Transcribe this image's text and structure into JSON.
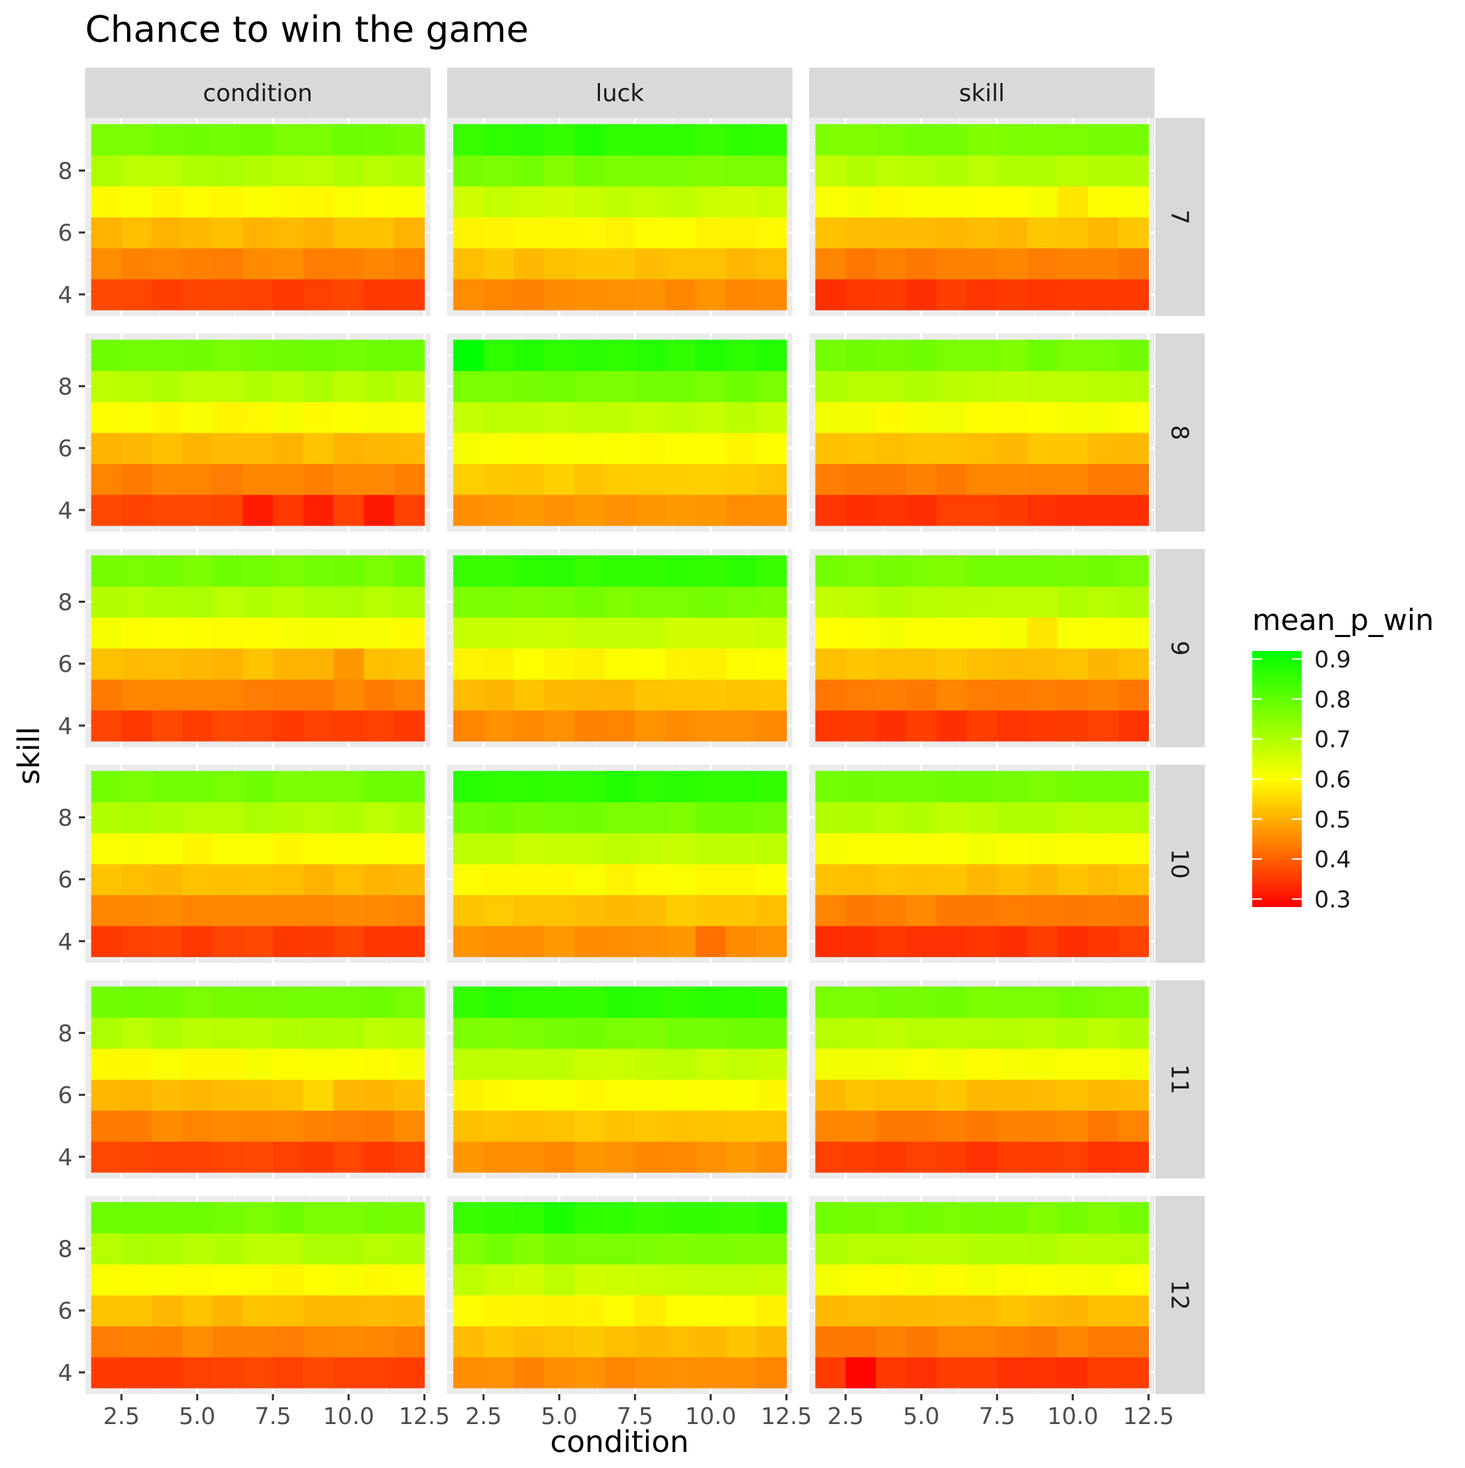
{
  "chart_data": {
    "type": "heatmap",
    "title": "Chance to win the game",
    "xlabel": "condition",
    "ylabel": "skill",
    "column_facets": [
      "condition",
      "luck",
      "skill"
    ],
    "row_facets": [
      "7",
      "8",
      "9",
      "10",
      "11",
      "12"
    ],
    "x": [
      2,
      3,
      4,
      5,
      6,
      7,
      8,
      9,
      10,
      11,
      12
    ],
    "y": [
      4,
      5,
      6,
      7,
      8,
      9
    ],
    "xlim": [
      1.3,
      12.7
    ],
    "ylim": [
      3.3,
      9.7
    ],
    "x_ticks": [
      "2.5",
      "5.0",
      "7.5",
      "10.0",
      "12.5"
    ],
    "y_ticks": [
      "4",
      "6",
      "8"
    ],
    "legend": {
      "title": "mean_p_win",
      "position": "right",
      "min": 0.28,
      "max": 0.92,
      "ticks": [
        "0.9",
        "0.8",
        "0.7",
        "0.6",
        "0.5",
        "0.4",
        "0.3"
      ],
      "low_color": "#ff0000",
      "mid_color": "#ffff00",
      "high_color": "#00ff00",
      "midpoint": 0.6
    },
    "profiles": {
      "condition": [
        0.36,
        0.445,
        0.515,
        0.6,
        0.695,
        0.775
      ],
      "luck": [
        0.455,
        0.52,
        0.59,
        0.67,
        0.765,
        0.86
      ],
      "skill": [
        0.35,
        0.44,
        0.52,
        0.605,
        0.69,
        0.77
      ]
    },
    "row_effects": {
      "condition": [
        0,
        0,
        0,
        0,
        0,
        0
      ],
      "luck": [
        0,
        0.01,
        0,
        0.005,
        0.005,
        0
      ],
      "skill": [
        0,
        0,
        0,
        0,
        0,
        0
      ]
    },
    "cell_overrides": [
      {
        "col": 0,
        "row": 1,
        "x": 7,
        "y": 4,
        "value": 0.315
      },
      {
        "col": 0,
        "row": 1,
        "x": 9,
        "y": 4,
        "value": 0.32
      },
      {
        "col": 0,
        "row": 1,
        "x": 11,
        "y": 4,
        "value": 0.31
      },
      {
        "col": 0,
        "row": 2,
        "x": 10,
        "y": 6,
        "value": 0.47
      },
      {
        "col": 0,
        "row": 4,
        "x": 9,
        "y": 6,
        "value": 0.55
      },
      {
        "col": 1,
        "row": 0,
        "x": 6,
        "y": 9,
        "value": 0.88
      },
      {
        "col": 1,
        "row": 1,
        "x": 2,
        "y": 9,
        "value": 0.92
      },
      {
        "col": 1,
        "row": 3,
        "x": 7,
        "y": 9,
        "value": 0.88
      },
      {
        "col": 1,
        "row": 3,
        "x": 10,
        "y": 4,
        "value": 0.42
      },
      {
        "col": 1,
        "row": 5,
        "x": 5,
        "y": 9,
        "value": 0.885
      },
      {
        "col": 2,
        "row": 0,
        "x": 10,
        "y": 7,
        "value": 0.57
      },
      {
        "col": 2,
        "row": 2,
        "x": 9,
        "y": 7,
        "value": 0.57
      },
      {
        "col": 2,
        "row": 5,
        "x": 3,
        "y": 4,
        "value": 0.285
      }
    ]
  }
}
